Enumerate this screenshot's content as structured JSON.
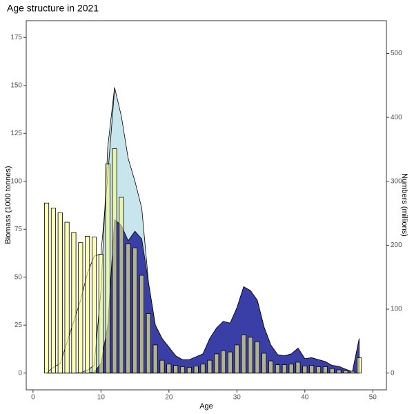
{
  "chart_data": {
    "type": "combo",
    "title": "Age structure in 2021",
    "x_label": "Age",
    "y_label": "Biomass (1000 tonnes)",
    "y2_label": "Numbers (millions)",
    "x": [
      2,
      3,
      4,
      5,
      6,
      7,
      8,
      9,
      10,
      11,
      12,
      13,
      14,
      15,
      16,
      17,
      18,
      19,
      20,
      21,
      22,
      23,
      24,
      25,
      26,
      27,
      28,
      29,
      30,
      31,
      32,
      33,
      34,
      35,
      36,
      37,
      38,
      39,
      40,
      41,
      42,
      43,
      44,
      45,
      46,
      47,
      48
    ],
    "series": [
      {
        "kind": "area",
        "color": "#c6e5ec",
        "values": [
          0,
          0,
          0,
          0,
          0,
          0.3,
          1.5,
          4,
          43,
          118,
          149,
          134,
          112,
          100,
          86,
          47,
          25,
          18,
          13.5,
          9,
          7,
          7,
          8.5,
          10,
          18,
          23.5,
          27,
          26,
          34,
          45,
          43,
          38,
          24,
          14.6,
          9.6,
          9,
          10,
          13,
          7.5,
          8,
          7,
          6,
          4,
          3.5,
          2,
          0.7,
          18
        ]
      },
      {
        "kind": "area",
        "color": "#3a3fa8",
        "values": [
          0,
          0,
          0,
          0,
          0,
          0,
          0,
          0.5,
          5,
          25,
          80,
          77,
          69,
          74,
          70,
          47,
          25,
          18,
          13.5,
          9,
          7,
          7,
          8.5,
          10,
          18,
          23.5,
          27,
          26,
          34,
          45,
          43,
          38,
          24,
          14.6,
          9.6,
          9,
          10,
          13,
          7.5,
          8,
          7,
          6,
          4,
          3.5,
          2,
          0.7,
          18
        ]
      },
      {
        "kind": "line",
        "color": "#000000",
        "values": [
          0,
          3,
          5,
          16,
          27,
          38,
          52,
          61,
          62,
          103,
          148,
          null,
          null,
          null,
          null,
          null,
          null,
          null,
          null,
          null,
          null,
          null,
          null,
          null,
          null,
          null,
          null,
          null,
          null,
          null,
          null,
          null,
          null,
          null,
          null,
          null,
          null,
          null,
          null,
          null,
          null,
          null,
          null,
          null,
          null,
          null,
          null
        ]
      },
      {
        "kind": "bar",
        "axis": "y2",
        "color": "#ffff80",
        "values": [
          266,
          258,
          251,
          236,
          220,
          204,
          214,
          213,
          186,
          327,
          351,
          275,
          202,
          196,
          153,
          93,
          44,
          20,
          14,
          12,
          10,
          9,
          11,
          14,
          20,
          30,
          35,
          33,
          44,
          60,
          56,
          49,
          31,
          19,
          13,
          13,
          14,
          17,
          11,
          12,
          10,
          10,
          7,
          5,
          4,
          3,
          24
        ]
      }
    ],
    "xlim": [
      -1,
      52
    ],
    "xticks": [
      0,
      10,
      20,
      30,
      40,
      50
    ],
    "ylim": [
      -8.75,
      183.75
    ],
    "yticks": [
      0,
      25,
      50,
      75,
      100,
      125,
      150,
      175
    ],
    "y2lim": [
      -26.25,
      551.25
    ],
    "y2ticks": [
      0,
      100,
      200,
      300,
      400,
      500
    ]
  }
}
